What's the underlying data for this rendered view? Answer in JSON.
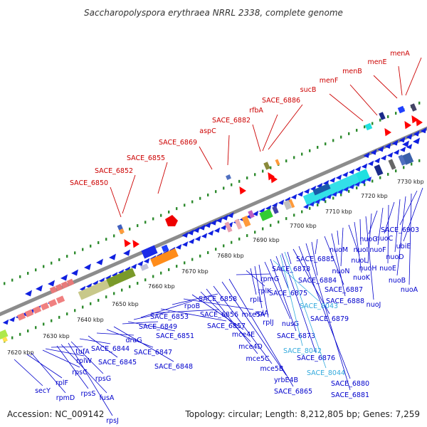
{
  "title": "Saccharopolyspora erythraea NRRL 2338, complete genome",
  "footer": {
    "accession": "Accession: NC_009142",
    "summary": "Topology: circular; Length: 8,212,805 bp; Genes: 7,259"
  },
  "colors": {
    "top_labels": "#cc0000",
    "bottom_labels": "#0000cc",
    "rna_labels": "#33aadd",
    "backbone": "#8c8c8c",
    "tick_dots": "#2e8b2e",
    "forward_genes": "#ff0000",
    "reverse_genes": "#1020e0"
  },
  "ticks": [
    "7620 kbp",
    "7630 kbp",
    "7640 kbp",
    "7650 kbp",
    "7660 kbp",
    "7670 kbp",
    "7680 kbp",
    "7690 kbp",
    "7700 kbp",
    "7710 kbp",
    "7720 kbp",
    "7730 kbp"
  ],
  "top_labels": [
    "SACE_6850",
    "SACE_6852",
    "SACE_6855",
    "SACE_6869",
    "aspC",
    "SACE_6882",
    "rfbA",
    "SACE_6886",
    "sucB",
    "menF",
    "menB",
    "menE",
    "menA"
  ],
  "bottom_labels": [
    "secY",
    "rplF",
    "rpmD",
    "rpsC",
    "rplW",
    "tufA",
    "rpsS",
    "fusA",
    "rpsJ",
    "rpsG",
    "SACE_6844",
    "SACE_6845",
    "draG",
    "SACE_6847",
    "SACE_6848",
    "SACE_6849",
    "SACE_6851",
    "SACE_6853",
    "rpoB",
    "SACE_6856",
    "SACE_6857",
    "SACE_6858",
    "mce5A",
    "mce4E",
    "mce4D",
    "mce5C",
    "mce5B",
    "yrbE4B",
    "SACE_6865",
    "rpmG",
    "rplK",
    "rplL",
    "rplA",
    "rplJ",
    "nusG",
    "SACE_6873",
    "SACE_6875",
    "SACE_6876",
    "SACE_6878",
    "SACE_6879",
    "SACE_6880",
    "SACE_6881",
    "SACE_6884",
    "SACE_6885",
    "SACE_6887",
    "SACE_6888",
    "nuoM",
    "nuoN",
    "nuoL",
    "nuoK",
    "nuoI",
    "nuoJ",
    "nuoH",
    "nuoG",
    "nuoF",
    "nuoE",
    "nuoC",
    "nuoD",
    "nuoB",
    "nuoA",
    "SACE_6903",
    "ubiE"
  ],
  "rna_labels": [
    "SACE_8043",
    "SACE_8042",
    "SACE_8044"
  ]
}
